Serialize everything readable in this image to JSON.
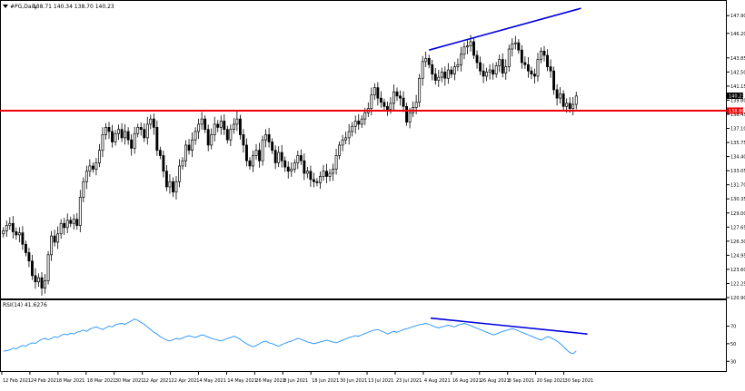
{
  "chart_data": [
    {
      "type": "candlestick",
      "header": {
        "symbol": "#PG,Daily",
        "ohlc": "138.71 140.34 138.70 140.23"
      },
      "ylim": [
        120.9,
        148.7
      ],
      "y_ticks": [
        "147.90",
        "146.20",
        "143.85",
        "142.50",
        "141.15",
        "139.80",
        "138.45",
        "137.10",
        "135.75",
        "134.40",
        "133.05",
        "131.70",
        "130.35",
        "129.00",
        "127.65",
        "126.30",
        "124.95",
        "123.60",
        "122.25",
        "120.90"
      ],
      "last_price_label": "140.23",
      "support_label": "138.80",
      "support_level": 138.8,
      "x_dates": [
        "12 Feb 2021",
        "24 Feb 2021",
        "8 Mar 2021",
        "18 Mar 2021",
        "30 Mar 2021",
        "12 Apr 2021",
        "22 Apr 2021",
        "4 May 2021",
        "14 May 2021",
        "26 May 2021",
        "8 Jun 2021",
        "18 Jun 2021",
        "30 Jun 2021",
        "13 Jul 2021",
        "23 Jul 2021",
        "4 Aug 2021",
        "16 Aug 2021",
        "26 Aug 2021",
        "8 Sep 2021",
        "20 Sep 2021",
        "30 Sep 2021"
      ],
      "closes": [
        127.3,
        127.8,
        128.0,
        127.2,
        126.9,
        127.1,
        126.0,
        125.2,
        124.4,
        123.0,
        122.4,
        122.8,
        121.8,
        122.5,
        125.0,
        126.8,
        126.2,
        127.0,
        128.0,
        127.6,
        128.3,
        128.0,
        128.4,
        127.8,
        130.5,
        132.0,
        133.0,
        133.5,
        133.2,
        133.8,
        135.0,
        136.5,
        137.2,
        136.8,
        135.8,
        136.6,
        137.0,
        136.2,
        136.8,
        136.0,
        135.2,
        136.6,
        137.2,
        137.0,
        136.2,
        137.5,
        138.0,
        137.2,
        135.0,
        134.5,
        133.0,
        131.5,
        132.0,
        131.0,
        132.0,
        133.5,
        134.0,
        135.5,
        135.0,
        136.0,
        136.8,
        137.5,
        138.0,
        137.0,
        135.5,
        136.5,
        137.5,
        137.2,
        137.8,
        137.0,
        136.0,
        137.0,
        137.5,
        138.0,
        136.5,
        135.5,
        134.0,
        133.5,
        134.5,
        135.0,
        134.0,
        136.0,
        136.5,
        135.8,
        135.0,
        133.8,
        134.8,
        134.0,
        133.4,
        133.0,
        133.2,
        133.8,
        134.5,
        134.0,
        132.8,
        133.0,
        132.2,
        132.0,
        131.9,
        132.5,
        133.0,
        132.5,
        132.8,
        133.2,
        134.5,
        135.5,
        136.0,
        136.2,
        136.8,
        137.3,
        137.8,
        137.5,
        138.0,
        138.6,
        139.0,
        140.3,
        141.0,
        140.0,
        139.6,
        139.2,
        138.9,
        139.5,
        140.6,
        140.2,
        140.0,
        139.2,
        137.7,
        138.6,
        139.1,
        139.6,
        141.9,
        143.5,
        143.8,
        143.2,
        142.3,
        141.7,
        142.0,
        142.5,
        141.9,
        142.7,
        142.3,
        143.0,
        143.2,
        144.2,
        144.9,
        145.0,
        145.4,
        144.1,
        143.4,
        142.6,
        142.1,
        142.5,
        142.7,
        142.3,
        143.1,
        143.7,
        142.4,
        143.0,
        144.7,
        145.2,
        145.3,
        144.6,
        143.4,
        143.2,
        142.6,
        142.3,
        142.1,
        143.7,
        144.5,
        144.1,
        143.0,
        142.6,
        140.8,
        140.0,
        140.4,
        139.2,
        139.5,
        139.0,
        139.4,
        140.2
      ],
      "rsi": {
        "label": "RSI(14) 41.6276",
        "ylim": [
          20,
          90
        ],
        "levels": [
          "70",
          "50",
          "30"
        ],
        "values": [
          41.5,
          42.0,
          43.0,
          45.0,
          44.0,
          46.5,
          48.0,
          47.2,
          49.5,
          51.0,
          50.2,
          53.0,
          55.0,
          56.0,
          54.5,
          56.0,
          58.0,
          57.0,
          59.5,
          61.0,
          60.0,
          62.0,
          61.0,
          63.0,
          64.0,
          65.5,
          64.0,
          66.5,
          68.0,
          69.0,
          67.5,
          66.0,
          68.0,
          70.0,
          69.0,
          71.5,
          72.5,
          73.0,
          72.0,
          74.0,
          76.0,
          78.0,
          76.5,
          74.0,
          72.0,
          69.0,
          66.0,
          63.0,
          61.0,
          58.0,
          56.0,
          54.0,
          53.0,
          54.5,
          56.0,
          55.0,
          56.5,
          58.0,
          59.0,
          58.0,
          57.0,
          58.5,
          60.0,
          59.0,
          57.5,
          56.0,
          55.0,
          54.0,
          53.0,
          54.5,
          56.0,
          57.0,
          58.5,
          57.0,
          55.0,
          52.0,
          50.0,
          48.0,
          46.5,
          48.0,
          50.0,
          52.0,
          53.0,
          51.0,
          50.0,
          48.5,
          47.0,
          49.0,
          50.5,
          52.0,
          53.0,
          54.5,
          56.0,
          55.0,
          53.5,
          52.0,
          51.0,
          50.0,
          51.0,
          52.0,
          53.0,
          54.0,
          53.0,
          52.0,
          51.0,
          52.5,
          54.0,
          55.5,
          57.0,
          58.0,
          59.0,
          58.5,
          60.0,
          61.5,
          63.0,
          64.5,
          65.5,
          66.0,
          64.5,
          63.0,
          61.0,
          62.5,
          64.0,
          63.0,
          64.5,
          66.0,
          67.0,
          68.0,
          69.5,
          70.5,
          71.5,
          72.0,
          73.0,
          72.0,
          70.5,
          69.0,
          68.0,
          69.0,
          70.0,
          71.0,
          70.0,
          69.0,
          71.0,
          72.0,
          73.0,
          72.0,
          70.5,
          69.0,
          67.5,
          66.0,
          64.5,
          63.0,
          61.5,
          60.0,
          61.0,
          62.5,
          64.0,
          65.0,
          66.0,
          67.0,
          66.0,
          64.5,
          63.0,
          61.5,
          60.0,
          58.5,
          57.0,
          55.5,
          54.0,
          56.0,
          58.0,
          57.0,
          55.0,
          53.0,
          50.0,
          47.0,
          43.0,
          40.0,
          38.5,
          41.6
        ]
      },
      "colors": {
        "support_line": "#ee0000",
        "trend_line": "#0000dd",
        "rsi_line": "#1e90ff",
        "candle": "#000000",
        "axis_text": "#000000"
      }
    }
  ]
}
